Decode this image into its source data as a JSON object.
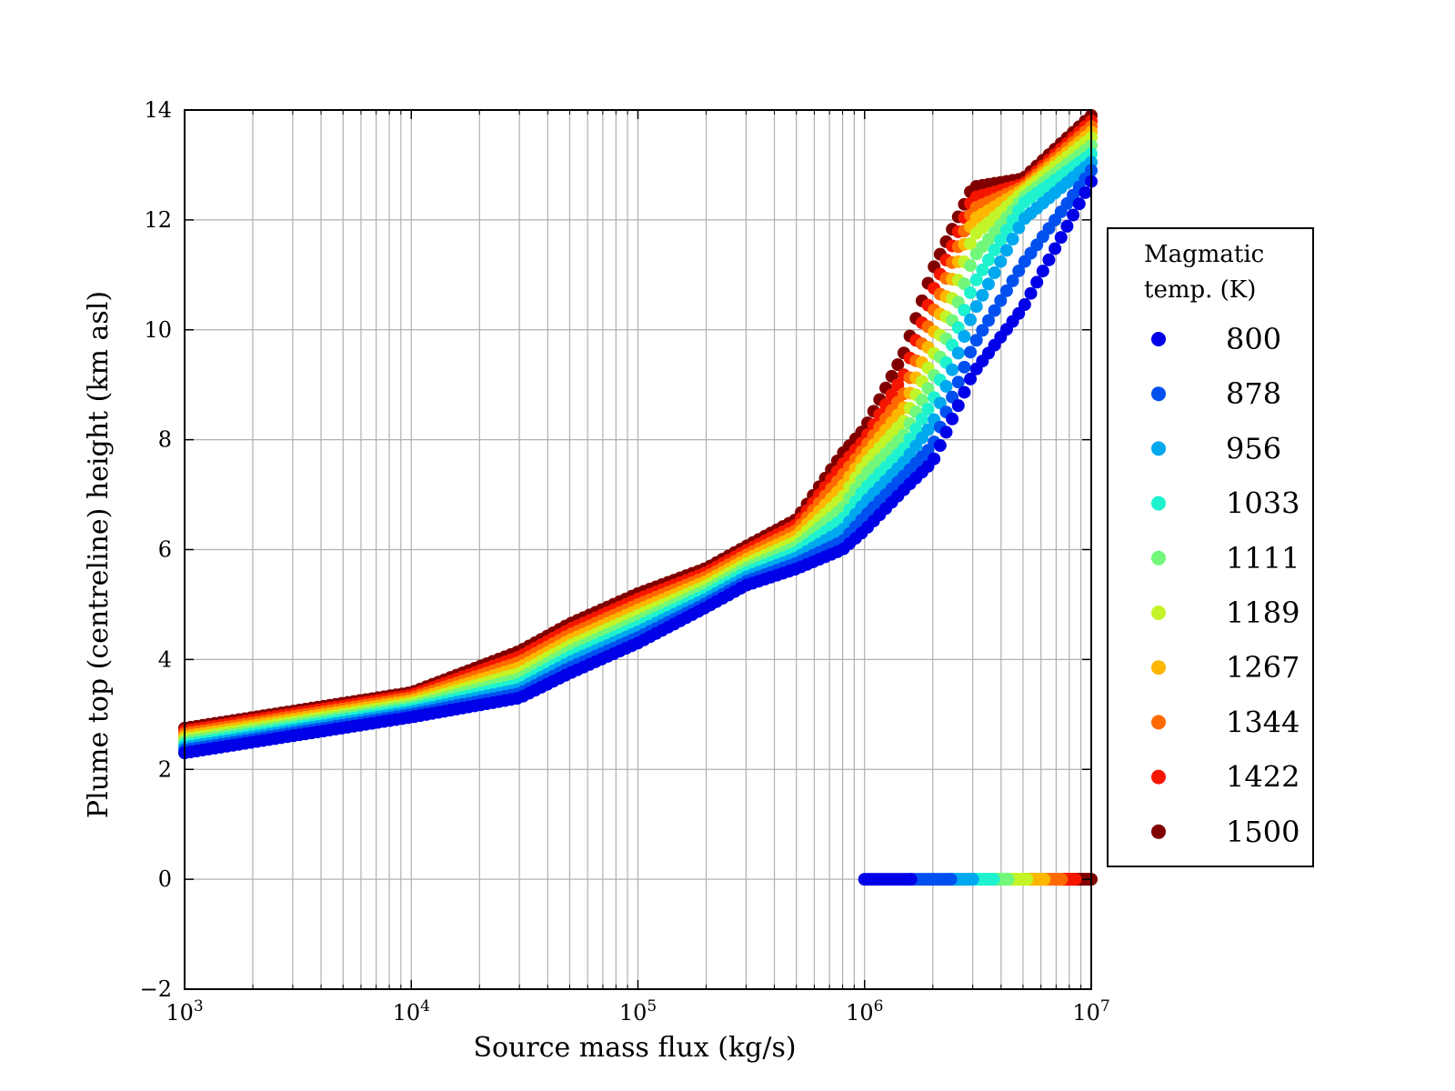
{
  "chart_data": {
    "type": "scatter",
    "title": "",
    "xlabel": "Source mass flux (kg/s)",
    "ylabel": "Plume top (centreline) height (km asl)",
    "xscale": "log",
    "xlim": [
      1000,
      10000000
    ],
    "ylim": [
      -2,
      14
    ],
    "grid": true,
    "x_ticks": [
      {
        "value": 1000,
        "base": "10",
        "exp": "3"
      },
      {
        "value": 10000,
        "base": "10",
        "exp": "4"
      },
      {
        "value": 100000,
        "base": "10",
        "exp": "5"
      },
      {
        "value": 1000000,
        "base": "10",
        "exp": "6"
      },
      {
        "value": 10000000,
        "base": "10",
        "exp": "7"
      }
    ],
    "y_ticks": [
      {
        "value": -2,
        "label": "−2"
      },
      {
        "value": 0,
        "label": "0"
      },
      {
        "value": 2,
        "label": "2"
      },
      {
        "value": 4,
        "label": "4"
      },
      {
        "value": 6,
        "label": "6"
      },
      {
        "value": 8,
        "label": "8"
      },
      {
        "value": 10,
        "label": "10"
      },
      {
        "value": 12,
        "label": "12"
      },
      {
        "value": 14,
        "label": "14"
      }
    ],
    "legend": {
      "title_lines": [
        "Magmatic",
        "temp. (K)"
      ],
      "placement": "outside-right"
    },
    "series": [
      {
        "name": "800",
        "color": "#0000e8",
        "main_x": [
          1000,
          10000,
          30000,
          50000,
          100000,
          200000,
          300000,
          500000,
          800000,
          1000000,
          1500000,
          2000000,
          3000000,
          5000000,
          10000000
        ],
        "main_y": [
          2.3,
          2.95,
          3.3,
          3.75,
          4.3,
          4.95,
          5.35,
          5.65,
          6.0,
          6.35,
          7.1,
          7.6,
          9.2,
          10.4,
          12.7
        ],
        "zero_x": [
          1000000,
          1600000
        ]
      },
      {
        "name": "878",
        "color": "#0050f0",
        "main_x": [
          1000,
          10000,
          30000,
          50000,
          100000,
          200000,
          300000,
          500000,
          800000,
          1000000,
          1500000,
          2000000,
          3000000,
          5000000,
          10000000
        ],
        "main_y": [
          2.35,
          3.0,
          3.38,
          3.85,
          4.4,
          5.02,
          5.42,
          5.75,
          6.15,
          6.6,
          7.35,
          7.9,
          9.7,
          11.2,
          12.9
        ],
        "zero_x": [
          1600000,
          2400000
        ]
      },
      {
        "name": "956",
        "color": "#00a8ef",
        "main_x": [
          1000,
          10000,
          30000,
          50000,
          100000,
          200000,
          300000,
          500000,
          800000,
          1000000,
          1500000,
          2000000,
          3000000,
          5000000,
          10000000
        ],
        "main_y": [
          2.4,
          3.05,
          3.46,
          3.95,
          4.5,
          5.1,
          5.5,
          5.85,
          6.35,
          6.85,
          7.6,
          8.3,
          10.3,
          12.0,
          13.05
        ],
        "zero_x": [
          2400000,
          3000000
        ]
      },
      {
        "name": "1033",
        "color": "#1ef2cf",
        "main_x": [
          1000,
          10000,
          30000,
          50000,
          100000,
          200000,
          300000,
          500000,
          800000,
          1000000,
          1500000,
          2000000,
          3000000,
          5000000,
          10000000
        ],
        "main_y": [
          2.45,
          3.1,
          3.55,
          4.05,
          4.6,
          5.18,
          5.58,
          5.95,
          6.55,
          7.1,
          7.85,
          8.7,
          10.8,
          12.3,
          13.2
        ],
        "zero_x": [
          3000000,
          3700000
        ]
      },
      {
        "name": "1111",
        "color": "#72f77b",
        "main_x": [
          1000,
          10000,
          30000,
          50000,
          100000,
          200000,
          300000,
          500000,
          800000,
          1000000,
          1500000,
          2000000,
          3000000,
          5000000,
          10000000
        ],
        "main_y": [
          2.5,
          3.15,
          3.65,
          4.15,
          4.7,
          5.26,
          5.66,
          6.05,
          6.75,
          7.35,
          8.1,
          9.1,
          11.3,
          12.4,
          13.35
        ],
        "zero_x": [
          3700000,
          4300000
        ]
      },
      {
        "name": "1189",
        "color": "#c3f427",
        "main_x": [
          1000,
          10000,
          30000,
          50000,
          100000,
          200000,
          300000,
          500000,
          800000,
          1000000,
          1500000,
          2000000,
          3000000,
          5000000,
          10000000
        ],
        "main_y": [
          2.55,
          3.2,
          3.75,
          4.25,
          4.8,
          5.34,
          5.74,
          6.15,
          6.95,
          7.55,
          8.35,
          9.5,
          11.7,
          12.5,
          13.5
        ],
        "zero_x": [
          4300000,
          5200000
        ]
      },
      {
        "name": "1267",
        "color": "#fdb700",
        "main_x": [
          1000,
          10000,
          30000,
          50000,
          100000,
          200000,
          300000,
          500000,
          800000,
          1000000,
          1500000,
          2000000,
          3000000,
          5000000,
          10000000
        ],
        "main_y": [
          2.6,
          3.25,
          3.85,
          4.35,
          4.9,
          5.42,
          5.82,
          6.25,
          7.15,
          7.7,
          8.6,
          9.9,
          12.0,
          12.55,
          13.6
        ],
        "zero_x": [
          5200000,
          6200000
        ]
      },
      {
        "name": "1344",
        "color": "#ff6a00",
        "main_x": [
          1000,
          10000,
          30000,
          50000,
          100000,
          200000,
          300000,
          500000,
          800000,
          1000000,
          1500000,
          2000000,
          3000000,
          5000000,
          10000000
        ],
        "main_y": [
          2.65,
          3.3,
          3.95,
          4.45,
          5.0,
          5.5,
          5.9,
          6.35,
          7.35,
          7.85,
          8.85,
          10.3,
          12.2,
          12.6,
          13.7
        ],
        "zero_x": [
          6200000,
          7400000
        ]
      },
      {
        "name": "1422",
        "color": "#f51600",
        "main_x": [
          1000,
          10000,
          30000,
          50000,
          100000,
          200000,
          300000,
          500000,
          800000,
          1000000,
          1500000,
          2000000,
          3000000,
          5000000,
          10000000
        ],
        "main_y": [
          2.7,
          3.35,
          4.05,
          4.55,
          5.1,
          5.58,
          5.98,
          6.45,
          7.55,
          8.0,
          9.2,
          10.7,
          12.4,
          12.65,
          13.8
        ],
        "zero_x": [
          7400000,
          8500000
        ]
      },
      {
        "name": "1500",
        "color": "#800000",
        "main_x": [
          1000,
          10000,
          30000,
          50000,
          100000,
          200000,
          300000,
          500000,
          800000,
          1000000,
          1500000,
          2000000,
          3000000,
          5000000,
          10000000
        ],
        "main_y": [
          2.75,
          3.4,
          4.15,
          4.65,
          5.2,
          5.66,
          6.06,
          6.55,
          7.75,
          8.2,
          9.6,
          11.1,
          12.6,
          12.75,
          13.9
        ],
        "zero_x": [
          8500000,
          10000000
        ]
      }
    ]
  }
}
